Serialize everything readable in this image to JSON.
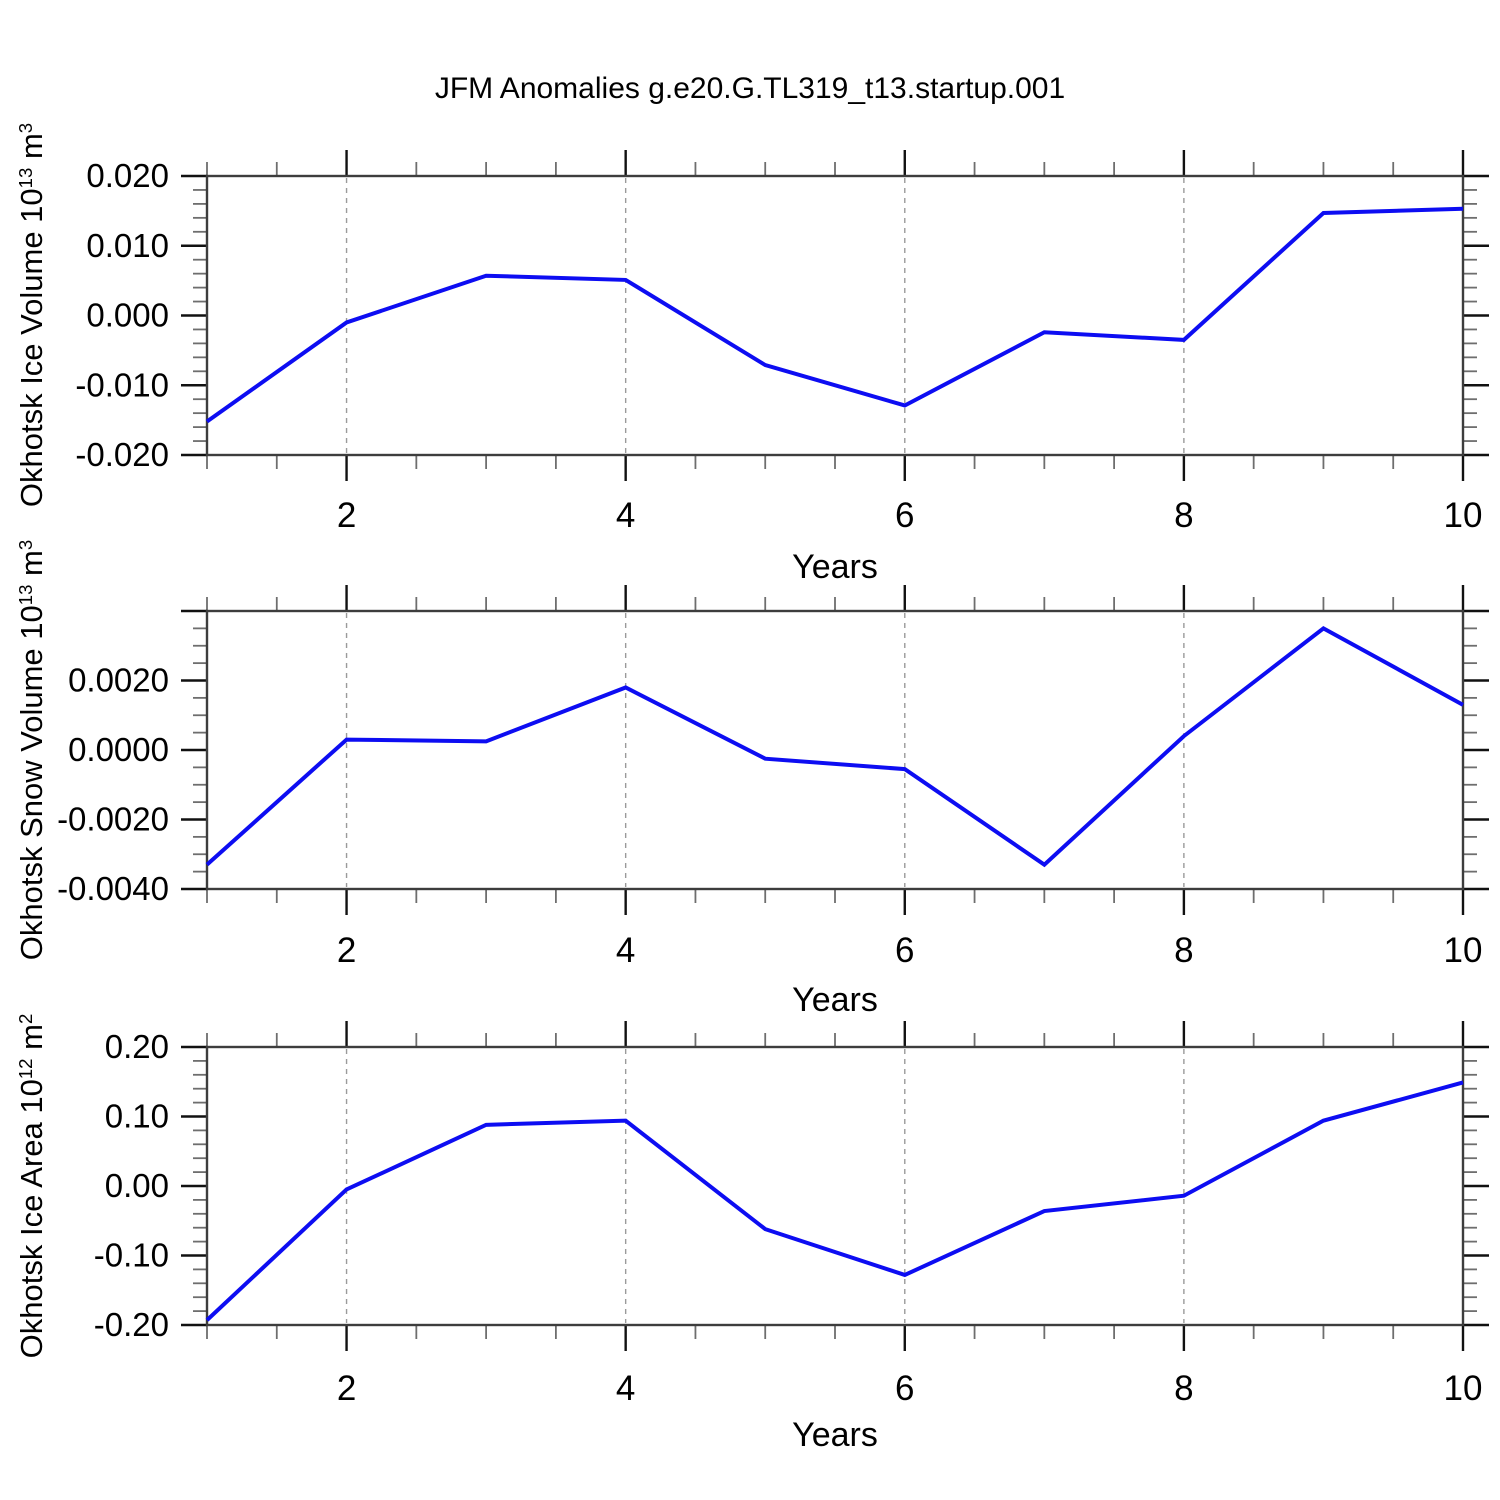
{
  "title": "JFM Anomalies g.e20.G.TL319_t13.startup.001",
  "colors": {
    "background": "#ffffff",
    "line": "#0d0df2",
    "frame": "#3d3d3d",
    "major_tick": "#111111",
    "minor_tick": "#6e6e6e",
    "gridline": "#9a9a9a",
    "text": "#000000"
  },
  "chart_data": [
    {
      "type": "line",
      "series_name": "Okhotsk Ice Volume anomaly",
      "x": [
        1,
        2,
        3,
        4,
        5,
        6,
        7,
        8,
        9,
        10
      ],
      "values": [
        -0.0152,
        -0.001,
        0.0057,
        0.0051,
        -0.0071,
        -0.0129,
        -0.0024,
        -0.0035,
        0.0147,
        0.0153
      ],
      "xlabel": "Years",
      "ylabel": "Okhotsk Ice Volume 10^13 m^3",
      "ylabel_rich": [
        "Okhotsk Ice Volume 10",
        "13",
        " m",
        "3"
      ],
      "xlim": [
        1,
        10
      ],
      "ylim": [
        -0.02,
        0.02
      ],
      "xticks_major": [
        2,
        4,
        6,
        8,
        10
      ],
      "xtick_labels": [
        "2",
        "4",
        "6",
        "8",
        "10"
      ],
      "xticks_minor_step": 0.5,
      "gridlines_at": [
        2,
        4,
        6,
        8
      ],
      "grid_style": "vertical dashed",
      "legend": "none",
      "yticks": [
        {
          "v": 0.02,
          "label": "0.020"
        },
        {
          "v": 0.01,
          "label": "0.010"
        },
        {
          "v": 0.0,
          "label": "0.000"
        },
        {
          "v": -0.01,
          "label": "-0.010"
        },
        {
          "v": -0.02,
          "label": "-0.020"
        }
      ],
      "ytick_minor_step": 0.002
    },
    {
      "type": "line",
      "series_name": "Okhotsk Snow Volume anomaly",
      "x": [
        1,
        2,
        3,
        4,
        5,
        6,
        7,
        8,
        9,
        10
      ],
      "values": [
        -0.0033,
        0.0003,
        0.00025,
        0.0018,
        -0.00025,
        -0.00055,
        -0.0033,
        0.0004,
        0.0035,
        0.0013
      ],
      "xlabel": "Years",
      "ylabel": "Okhotsk Snow Volume 10^13 m^3",
      "ylabel_rich": [
        "Okhotsk Snow Volume 10",
        "13",
        " m",
        "3"
      ],
      "xlim": [
        1,
        10
      ],
      "ylim": [
        -0.004,
        0.004
      ],
      "xticks_major": [
        2,
        4,
        6,
        8,
        10
      ],
      "xtick_labels": [
        "2",
        "4",
        "6",
        "8",
        "10"
      ],
      "xticks_minor_step": 0.5,
      "gridlines_at": [
        2,
        4,
        6,
        8
      ],
      "grid_style": "vertical dashed",
      "legend": "none",
      "yticks": [
        {
          "v": 0.004,
          "label": ""
        },
        {
          "v": 0.002,
          "label": "0.0020"
        },
        {
          "v": 0.0,
          "label": "0.0000"
        },
        {
          "v": -0.002,
          "label": "-0.0020"
        },
        {
          "v": -0.004,
          "label": "-0.0040"
        }
      ],
      "ytick_minor_step": 0.0005
    },
    {
      "type": "line",
      "series_name": "Okhotsk Ice Area anomaly",
      "x": [
        1,
        2,
        3,
        4,
        5,
        6,
        7,
        8,
        9,
        10
      ],
      "values": [
        -0.193,
        -0.005,
        0.088,
        0.094,
        -0.062,
        -0.128,
        -0.036,
        -0.014,
        0.094,
        0.149
      ],
      "xlabel": "Years",
      "ylabel": "Okhotsk Ice Area 10^12 m^2",
      "ylabel_rich": [
        "Okhotsk Ice Area 10",
        "12",
        " m",
        "2"
      ],
      "xlim": [
        1,
        10
      ],
      "ylim": [
        -0.2,
        0.2
      ],
      "xticks_major": [
        2,
        4,
        6,
        8,
        10
      ],
      "xtick_labels": [
        "2",
        "4",
        "6",
        "8",
        "10"
      ],
      "xticks_minor_step": 0.5,
      "gridlines_at": [
        2,
        4,
        6,
        8
      ],
      "grid_style": "vertical dashed",
      "legend": "none",
      "yticks": [
        {
          "v": 0.2,
          "label": "0.20"
        },
        {
          "v": 0.1,
          "label": "0.10"
        },
        {
          "v": 0.0,
          "label": "0.00"
        },
        {
          "v": -0.1,
          "label": "-0.10"
        },
        {
          "v": -0.2,
          "label": "-0.20"
        }
      ],
      "ytick_minor_step": 0.02
    }
  ]
}
